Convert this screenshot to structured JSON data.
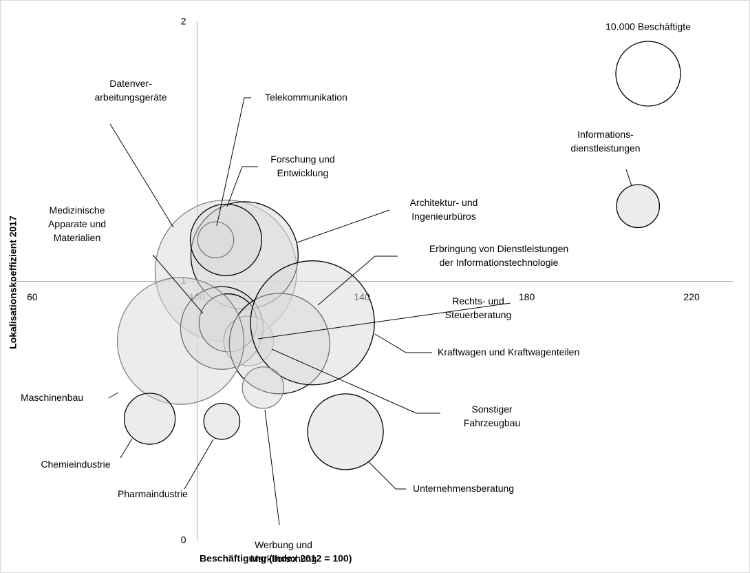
{
  "chart_data": {
    "type": "bubble",
    "x_label": "Beschäftigung (Index 2012 = 100)",
    "y_label": "Lokalisationskoeffizient 2017",
    "labels": [
      "Informations-\ndienstleistungen",
      "Datenver-\narbeitungsgeräte",
      "Architektur- und\nIngenieurbüros",
      "Forschung und\nEntwicklung",
      "Telekommunikation",
      "Medizinische\nApparate und\nMaterialien",
      "Rechts- und\nSteuerberatung",
      "Sonstiger\nFahrzeugbau",
      "Erbringung von Dienstleistungen\nder Informationstechnologie",
      "Kraftwagen und Kraftwagenteilen",
      "Maschinenbau",
      "Chemieindustrie",
      "Pharmaindustrie",
      "Werbung und\nMarktforschung",
      "Unternehmensberatung"
    ],
    "x": [
      207,
      107,
      111.5,
      107,
      104.5,
      106,
      107.5,
      112.5,
      120,
      128,
      96,
      88.5,
      106,
      116,
      136
    ],
    "y": [
      1.29,
      1.04,
      1.1,
      1.16,
      1.16,
      0.82,
      0.84,
      0.77,
      0.76,
      0.84,
      0.77,
      0.47,
      0.46,
      0.59,
      0.42
    ],
    "sizes": [
      4400,
      48000,
      27500,
      12200,
      3100,
      16300,
      8000,
      5900,
      24100,
      36700,
      38300,
      6200,
      3100,
      4100,
      13700
    ],
    "size_legend": {
      "label": "10.000 Beschäftigte",
      "value": 10000
    },
    "color": "#d9d9d9",
    "xlim": [
      55,
      230
    ],
    "xticks": [
      60,
      100,
      140,
      180,
      220
    ],
    "ylim": [
      0,
      2
    ],
    "yticks": [
      0,
      1,
      2
    ],
    "axis_cross": {
      "x": 100,
      "y": 1
    },
    "grid": false
  }
}
